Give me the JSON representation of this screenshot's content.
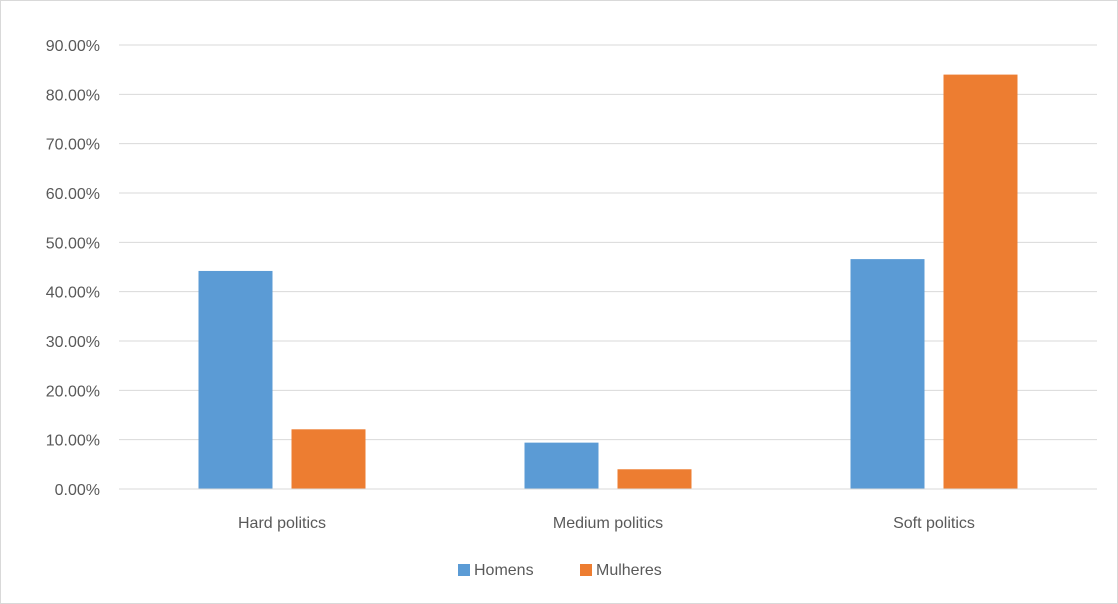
{
  "chart_data": {
    "type": "bar",
    "categories": [
      "Hard politics",
      "Medium politics",
      "Soft politics"
    ],
    "series": [
      {
        "name": "Homens",
        "values": [
          44.2,
          9.4,
          46.6
        ],
        "color": "#5b9bd5"
      },
      {
        "name": "Mulheres",
        "values": [
          12.1,
          4.0,
          84.0
        ],
        "color": "#ed7d31"
      }
    ],
    "y_ticks": [
      "0.00%",
      "10.00%",
      "20.00%",
      "30.00%",
      "40.00%",
      "50.00%",
      "60.00%",
      "70.00%",
      "80.00%",
      "90.00%"
    ],
    "ylim": [
      0,
      90
    ],
    "y_unit": "percent",
    "grid": true,
    "legend_position": "bottom",
    "title": "",
    "xlabel": "",
    "ylabel": "",
    "gridline_color": "#d9d9d9",
    "text_color": "#595959"
  }
}
